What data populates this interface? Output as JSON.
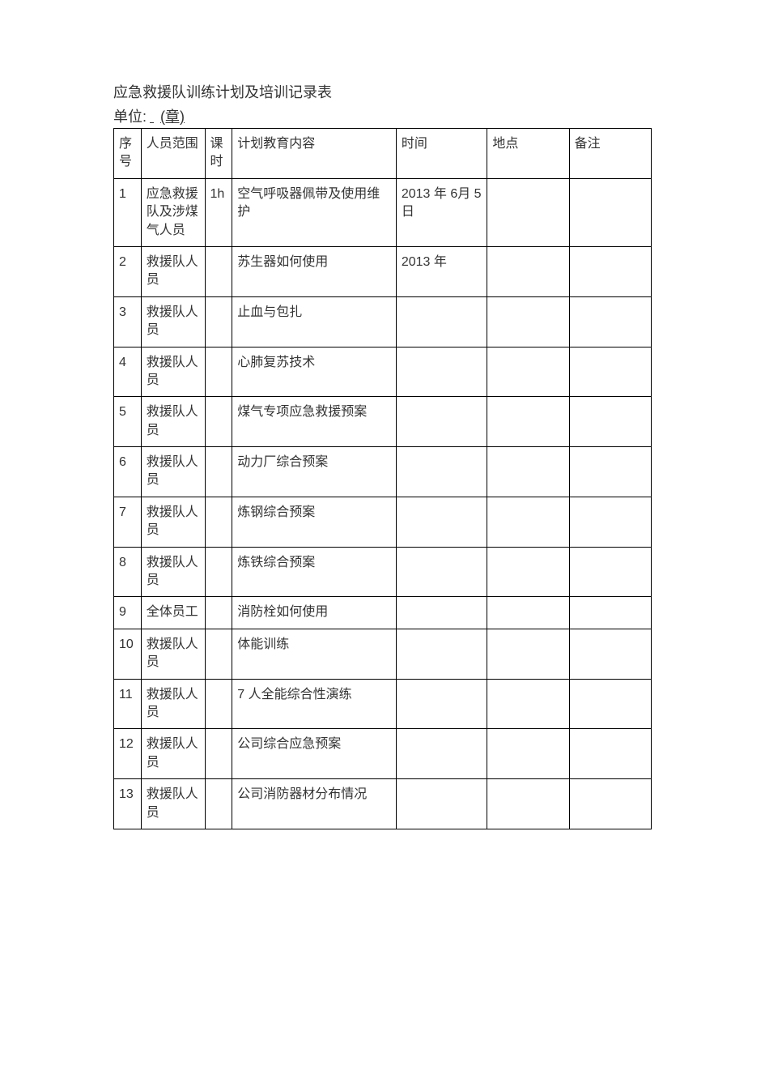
{
  "title": "应急救援队训练计划及培训记录表",
  "unit_label": "单位:",
  "unit_blank": "        ",
  "unit_suffix": "(章)",
  "table": {
    "columns": [
      {
        "key": "seq",
        "label": "序号",
        "class": "col-seq"
      },
      {
        "key": "scope",
        "label": "人员范围",
        "class": "col-scope"
      },
      {
        "key": "hours",
        "label": "课时",
        "class": "col-hours"
      },
      {
        "key": "content",
        "label": "计划教育内容",
        "class": "col-content"
      },
      {
        "key": "time",
        "label": "时间",
        "class": "col-time"
      },
      {
        "key": "place",
        "label": "地点",
        "class": "col-place"
      },
      {
        "key": "remark",
        "label": "备注",
        "class": "col-remark"
      }
    ],
    "rows": [
      {
        "seq": "1",
        "scope": "应急救援队及涉煤气人员",
        "hours": "1h",
        "content": "空气呼吸器佩带及使用维护",
        "time": "2013 年 6月 5 日",
        "place": "",
        "remark": ""
      },
      {
        "seq": "2",
        "scope": "救援队人员",
        "hours": "",
        "content": "苏生器如何使用",
        "time": "2013 年",
        "place": "",
        "remark": ""
      },
      {
        "seq": "3",
        "scope": "救援队人员",
        "hours": "",
        "content": "止血与包扎",
        "time": "",
        "place": "",
        "remark": ""
      },
      {
        "seq": "4",
        "scope": "救援队人员",
        "hours": "",
        "content": "心肺复苏技术",
        "time": "",
        "place": "",
        "remark": ""
      },
      {
        "seq": "5",
        "scope": "救援队人员",
        "hours": "",
        "content": "煤气专项应急救援预案",
        "time": "",
        "place": "",
        "remark": ""
      },
      {
        "seq": "6",
        "scope": "救援队人员",
        "hours": "",
        "content": "动力厂综合预案",
        "time": "",
        "place": "",
        "remark": ""
      },
      {
        "seq": "7",
        "scope": "救援队人员",
        "hours": "",
        "content": "炼钢综合预案",
        "time": "",
        "place": "",
        "remark": ""
      },
      {
        "seq": "8",
        "scope": "救援队人员",
        "hours": "",
        "content": "炼铁综合预案",
        "time": "",
        "place": "",
        "remark": ""
      },
      {
        "seq": "9",
        "scope": "全体员工",
        "hours": "",
        "content": "消防栓如何使用",
        "time": "",
        "place": "",
        "remark": ""
      },
      {
        "seq": "10",
        "scope": "救援队人员",
        "hours": "",
        "content": "体能训练",
        "time": "",
        "place": "",
        "remark": ""
      },
      {
        "seq": "11",
        "scope": "救援队人员",
        "hours": "",
        "content": "7 人全能综合性演练",
        "time": "",
        "place": "",
        "remark": ""
      },
      {
        "seq": "12",
        "scope": "救援队人员",
        "hours": "",
        "content": "公司综合应急预案",
        "time": "",
        "place": "",
        "remark": ""
      },
      {
        "seq": "13",
        "scope": "救援队人员",
        "hours": "",
        "content": "公司消防器材分布情况",
        "time": "",
        "place": "",
        "remark": ""
      }
    ]
  },
  "style": {
    "page_bg": "#ffffff",
    "text_color": "#333333",
    "border_color": "#000000",
    "title_fontsize": 18,
    "cell_fontsize": 16
  }
}
